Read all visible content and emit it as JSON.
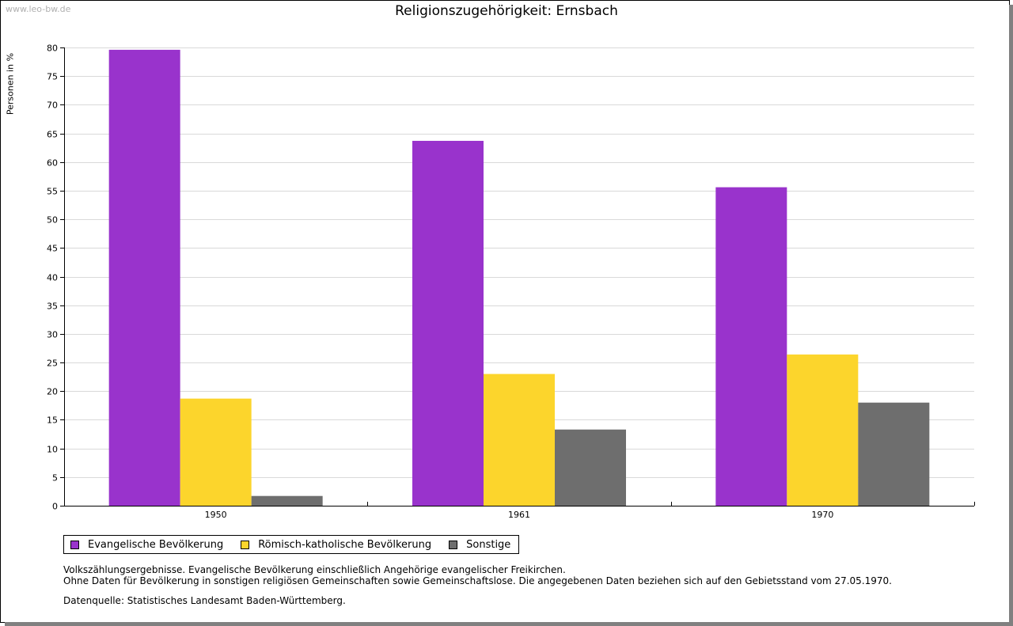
{
  "watermark": "www.leo-bw.de",
  "chart_data": {
    "type": "bar",
    "title": "Religionszugehörigkeit: Ernsbach",
    "xlabel": "",
    "ylabel": "Personen in %",
    "ylim": [
      0,
      80
    ],
    "yticks": [
      0,
      5,
      10,
      15,
      20,
      25,
      30,
      35,
      40,
      45,
      50,
      55,
      60,
      65,
      70,
      75,
      80
    ],
    "grid": true,
    "legend_position": "bottom-left",
    "categories": [
      "1950",
      "1961",
      "1970"
    ],
    "series": [
      {
        "name": "Evangelische Bevölkerung",
        "color": "#9933cc",
        "values": [
          79.6,
          63.7,
          55.6
        ]
      },
      {
        "name": "Römisch-katholische Bevölkerung",
        "color": "#fcd52c",
        "values": [
          18.7,
          23.0,
          26.4
        ]
      },
      {
        "name": "Sonstige",
        "color": "#6e6e6e",
        "values": [
          1.7,
          13.3,
          18.0
        ]
      }
    ]
  },
  "notes": {
    "line1": "Volkszählungsergebnisse. Evangelische Bevölkerung einschließlich Angehörige evangelischer Freikirchen.",
    "line2": "Ohne Daten für Bevölkerung in sonstigen religiösen Gemeinschaften sowie Gemeinschaftslose. Die angegebenen Daten beziehen sich auf den Gebietsstand vom 27.05.1970.",
    "source": "Datenquelle: Statistisches Landesamt Baden-Württemberg."
  }
}
